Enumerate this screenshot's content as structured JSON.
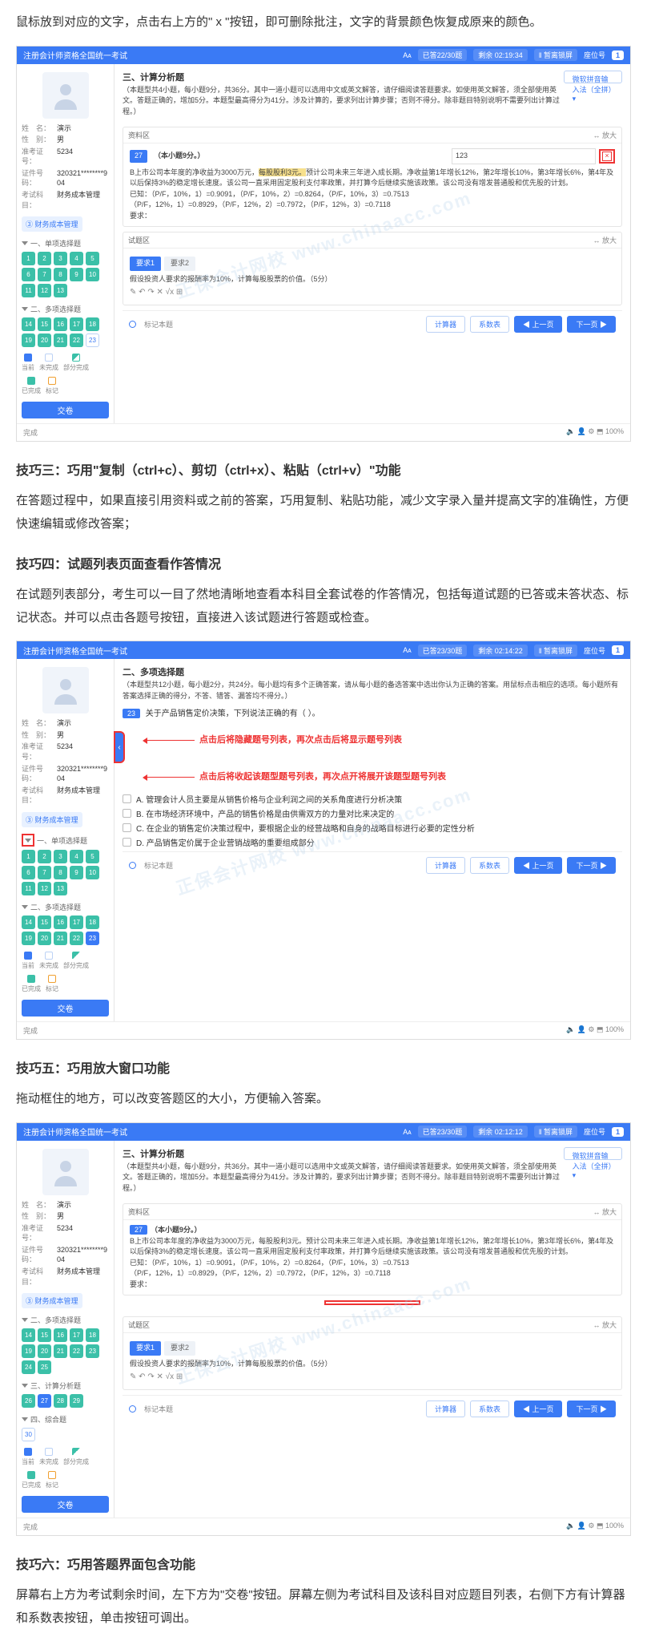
{
  "article": {
    "p0": "鼠标放到对应的文字，点击右上方的\" x \"按钮，即可删除批注，文字的背景颜色恢复成原来的颜色。",
    "h3": "技巧三：巧用\"复制（ctrl+c）、剪切（ctrl+x）、粘贴（ctrl+v）\"功能",
    "p3": "在答题过程中，如果直接引用资料或之前的答案，巧用复制、粘贴功能，减少文字录入量并提高文字的准确性，方便快速编辑或修改答案；",
    "h4": "技巧四：试题列表页面查看作答情况",
    "p4": "在试题列表部分，考生可以一目了然地清晰地查看本科目全套试卷的作答情况，包括每道试题的已答或未答状态、标记状态。并可以点击各题号按钮，直接进入该试题进行答题或检查。",
    "h5": "技巧五：巧用放大窗口功能",
    "p5": "拖动框住的地方，可以改变答题区的大小，方便输入答案。",
    "h6": "技巧六：巧用答题界面包含功能",
    "p6": "屏幕右上方为考试剩余时间，左下方为\"交卷\"按钮。屏幕左侧为考试科目及该科目对应题目列表，右侧下方有计算器和系数表按钮，单击按钮可调出。"
  },
  "exam": {
    "window_title": "注册会计师资格全国统一考试",
    "font_icon": "Aᴀ",
    "seat_label": "座位号",
    "seat_no": "1",
    "pause": "‖ 暂离锁屏",
    "student": {
      "name_k": "姓　名：",
      "name_v": "演示",
      "sex_k": "性　别：",
      "sex_v": "男",
      "card_k": "准考证号：",
      "cardno": "5234",
      "id_k": "证件号码：",
      "idno": "320321********904",
      "subj_k": "考试科目：",
      "subj_v": "财务成本管理"
    },
    "subject_tab": "③ 财务成本管理",
    "groups": {
      "g1": "一、单项选择题",
      "g2": "二、多项选择题",
      "g3": "三、计算分析题",
      "g4": "四、综合题"
    },
    "legend": {
      "cur": "当前",
      "undone": "未完成",
      "part": "部分完成",
      "done": "已完成",
      "mark": "标记"
    },
    "submit": "交卷",
    "done_status": "完成",
    "buttons": {
      "calc": "计算器",
      "coef": "系数表",
      "prev": "◀ 上一页",
      "next": "下一页 ▶",
      "mark": "标记本题",
      "ime": "微软拼音输入法（全拼）▾"
    },
    "zoom": "↔ 放大"
  },
  "shot1": {
    "progress": "已答22/30题",
    "time": "剩余 02:19:34",
    "stem_title": "三、计算分析题",
    "stem_desc": "（本题型共4小题，每小题9分，共36分。其中一道小题可以选用中文或英文解答，请仔细阅读答题要求。如使用英文解答，须全部使用英文。答题正确的，增加5分。本题型最高得分为41分。涉及计算的，要求列出计算步骤；否则不得分。除非题目特别说明不需要列出计算过程。）",
    "zone1_head": "资料区",
    "q_no": "27",
    "q_score": "（本小题9分。）",
    "input_value": "123",
    "material": "B上市公司本年度的净收益为3000万元，<span class='hl'>每股股利3元。</span>预计公司未来三年进入成长期。净收益第1年增长12%，第2年增长10%，第3年增长6%，第4年及以后保持3%的稳定增长速度。该公司一直采用固定股利支付率政策，并打算今后继续实施该政策。该公司没有增发普通股和优先股的计划。",
    "known_line": "已知：（P/F，10%，1）=0.9091，（P/F，10%，2）=0.8264，（P/F，10%，3）=0.7513",
    "known_line2": "（P/F，12%，1）=0.8929，（P/F，12%，2）=0.7972，（P/F，12%，3）=0.7118",
    "req": "要求：",
    "zone2_head": "试题区",
    "tab1": "要求1",
    "tab2": "要求2",
    "req_text": "假设投资人要求的报酬率为10%，计算每股股票的价值。（5分）",
    "toolbar": "✎  ↶  ↷  ✕  √x  ⊞"
  },
  "shot2": {
    "progress": "已答23/30题",
    "time": "剩余 02:14:22",
    "stem_title": "二、多项选择题",
    "stem_desc": "（本题型共12小题，每小题2分，共24分。每小题均有多个正确答案，请从每小题的备选答案中选出你认为正确的答案。用鼠标点击相应的选项。每小题所有答案选择正确的得分，不答、错答、漏答均不得分。）",
    "q_no": "23",
    "q_text": "关于产品销售定价决策，下列说法正确的有（  ）。",
    "optA": "A. 管理会计人员主要是从销售价格与企业利润之间的关系角度进行分析决策",
    "optB": "B. 在市场经济环境中，产品的销售价格是由供需双方的力量对比来决定的",
    "optC": "C. 在企业的销售定价决策过程中，要根据企业的经营战略和自身的战略目标进行必要的定性分析",
    "optD": "D. 产品销售定价属于企业营销战略的重要组成部分",
    "annot1": "点击后将隐藏题号列表，再次点击后将显示题号列表",
    "annot2": "点击后将收起该题型题号列表，再次点开将展开该题型题号列表"
  },
  "shot3": {
    "progress": "已答23/30题",
    "time": "剩余 02:12:12"
  },
  "colors": {
    "primary": "#3a7af5",
    "done": "#3bc0a8",
    "hl": "#f7e08c",
    "red": "#e33333"
  }
}
